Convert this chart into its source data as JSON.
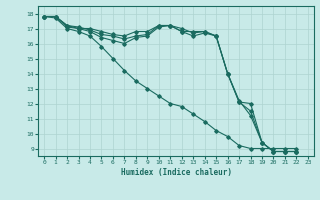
{
  "xlabel": "Humidex (Indice chaleur)",
  "xlim": [
    -0.5,
    23.5
  ],
  "ylim": [
    8.5,
    18.5
  ],
  "yticks": [
    9,
    10,
    11,
    12,
    13,
    14,
    15,
    16,
    17,
    18
  ],
  "xticks": [
    0,
    1,
    2,
    3,
    4,
    5,
    6,
    7,
    8,
    9,
    10,
    11,
    12,
    13,
    14,
    15,
    16,
    17,
    18,
    19,
    20,
    21,
    22,
    23
  ],
  "bg_color": "#c8eae8",
  "grid_color": "#aed4d0",
  "line_color": "#1a6b60",
  "line1_y": [
    17.8,
    17.8,
    17.2,
    17.0,
    17.0,
    16.8,
    16.6,
    16.5,
    16.8,
    16.8,
    17.2,
    17.2,
    16.8,
    16.8,
    16.8,
    16.5,
    14.0,
    12.2,
    11.2,
    9.4,
    8.8,
    8.8,
    8.8
  ],
  "line2_y": [
    17.8,
    17.8,
    17.2,
    17.1,
    16.9,
    16.6,
    16.5,
    16.3,
    16.5,
    16.6,
    17.2,
    17.2,
    17.0,
    16.7,
    16.8,
    16.5,
    14.0,
    12.1,
    12.0,
    9.4,
    8.8,
    8.8,
    8.8
  ],
  "line3_y": [
    17.8,
    17.8,
    17.1,
    17.0,
    16.8,
    16.4,
    16.2,
    16.0,
    16.4,
    16.5,
    17.1,
    17.2,
    16.8,
    16.5,
    16.7,
    16.5,
    14.0,
    12.1,
    11.5,
    9.4,
    8.8,
    8.8,
    8.8
  ],
  "line4_y": [
    17.8,
    17.7,
    17.0,
    16.8,
    16.5,
    15.8,
    15.0,
    14.2,
    13.5,
    13.0,
    12.5,
    12.0,
    11.8,
    11.3,
    10.8,
    10.2,
    9.8,
    9.2,
    9.0,
    9.0,
    9.0,
    9.0,
    9.0
  ]
}
